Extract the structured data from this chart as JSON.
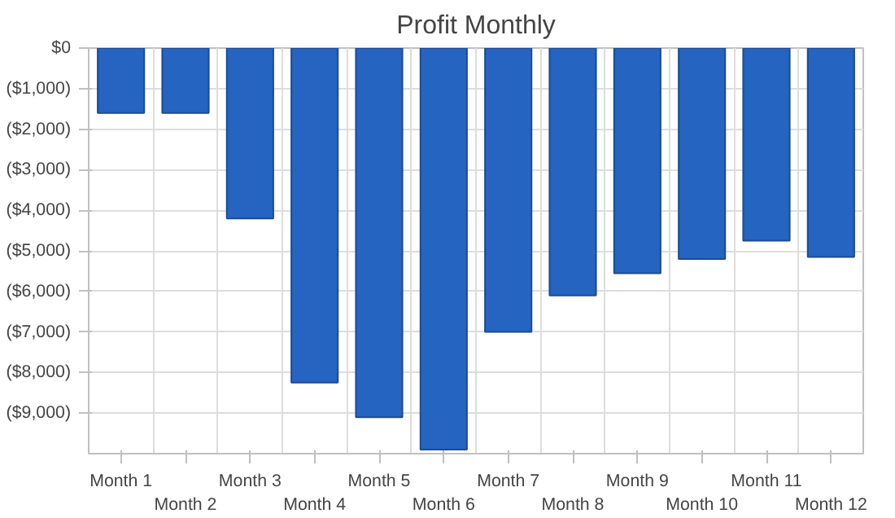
{
  "chart_data": {
    "type": "bar",
    "title": "Profit Monthly",
    "categories": [
      "Month 1",
      "Month 2",
      "Month 3",
      "Month 4",
      "Month 5",
      "Month 6",
      "Month 7",
      "Month 8",
      "Month 9",
      "Month 10",
      "Month 11",
      "Month 12"
    ],
    "values": [
      -1600,
      -1600,
      -4200,
      -8250,
      -9100,
      -9900,
      -7000,
      -6100,
      -5550,
      -5200,
      -4750,
      -5150
    ],
    "color": "#2564c1",
    "ylim": [
      -10000,
      0
    ],
    "yticks": [
      {
        "value": 0,
        "label": "$0"
      },
      {
        "value": -1000,
        "label": "($1,000)"
      },
      {
        "value": -2000,
        "label": "($2,000)"
      },
      {
        "value": -3000,
        "label": "($3,000)"
      },
      {
        "value": -4000,
        "label": "($4,000)"
      },
      {
        "value": -5000,
        "label": "($5,000)"
      },
      {
        "value": -6000,
        "label": "($6,000)"
      },
      {
        "value": -7000,
        "label": "($7,000)"
      },
      {
        "value": -8000,
        "label": "($8,000)"
      },
      {
        "value": -9000,
        "label": "($9,000)"
      }
    ],
    "grid": true
  }
}
